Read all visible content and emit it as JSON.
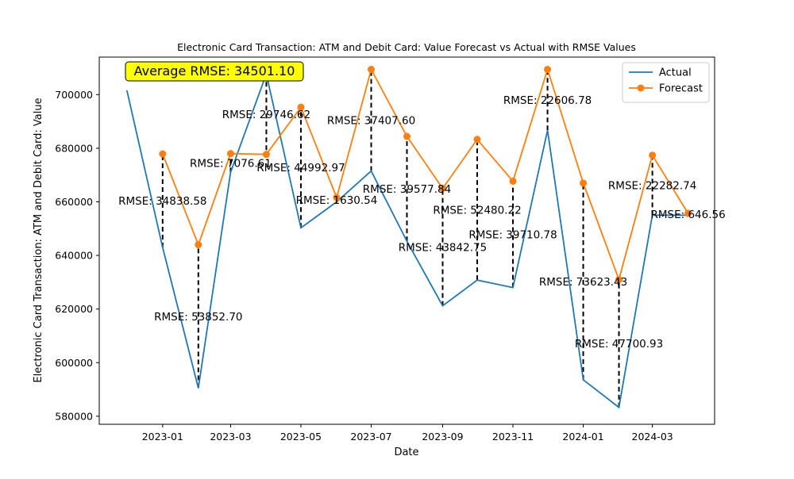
{
  "chart_data": {
    "type": "line",
    "title": "Electronic Card Transaction: ATM and Debit Card: Value Forecast vs Actual with RMSE Values",
    "xlabel": "Date",
    "ylabel": "Electronic Card Transaction: ATM and Debit Card: Value",
    "x_range": [
      "2022-11-07",
      "2024-04-24"
    ],
    "ylim": [
      577000,
      714000
    ],
    "grid": false,
    "legend_position": "top-right",
    "x_ticks": [
      {
        "date": "2023-01-01",
        "label": "2023-01"
      },
      {
        "date": "2023-03-01",
        "label": "2023-03"
      },
      {
        "date": "2023-05-01",
        "label": "2023-05"
      },
      {
        "date": "2023-07-01",
        "label": "2023-07"
      },
      {
        "date": "2023-09-01",
        "label": "2023-09"
      },
      {
        "date": "2023-11-01",
        "label": "2023-11"
      },
      {
        "date": "2024-01-01",
        "label": "2024-01"
      },
      {
        "date": "2024-03-01",
        "label": "2024-03"
      }
    ],
    "y_ticks": [
      {
        "value": 580000,
        "label": "580000"
      },
      {
        "value": 600000,
        "label": "600000"
      },
      {
        "value": 620000,
        "label": "620000"
      },
      {
        "value": 640000,
        "label": "640000"
      },
      {
        "value": 660000,
        "label": "660000"
      },
      {
        "value": 680000,
        "label": "680000"
      },
      {
        "value": 700000,
        "label": "700000"
      }
    ],
    "series": [
      {
        "name": "Actual",
        "color": "#1f77b4",
        "marker": "none",
        "points": [
          {
            "date": "2022-12-01",
            "value": 701600
          },
          {
            "date": "2023-01-01",
            "value": 643000
          },
          {
            "date": "2023-02-01",
            "value": 590500
          },
          {
            "date": "2023-03-01",
            "value": 671000
          },
          {
            "date": "2023-04-01",
            "value": 707700
          },
          {
            "date": "2023-05-01",
            "value": 650300
          },
          {
            "date": "2023-06-01",
            "value": 660000
          },
          {
            "date": "2023-07-01",
            "value": 671500
          },
          {
            "date": "2023-08-01",
            "value": 645300
          },
          {
            "date": "2023-09-01",
            "value": 621200
          },
          {
            "date": "2023-10-01",
            "value": 630800
          },
          {
            "date": "2023-11-01",
            "value": 628000
          },
          {
            "date": "2023-12-01",
            "value": 686700
          },
          {
            "date": "2024-01-01",
            "value": 593600
          },
          {
            "date": "2024-02-01",
            "value": 583300
          },
          {
            "date": "2024-03-01",
            "value": 655000
          },
          {
            "date": "2024-04-01",
            "value": 655000
          }
        ]
      },
      {
        "name": "Forecast",
        "color": "#ff7f0e",
        "marker": "circle",
        "points": [
          {
            "date": "2023-01-01",
            "value": 677900
          },
          {
            "date": "2023-02-01",
            "value": 644000
          },
          {
            "date": "2023-03-01",
            "value": 678000
          },
          {
            "date": "2023-04-01",
            "value": 677700
          },
          {
            "date": "2023-05-01",
            "value": 695300
          },
          {
            "date": "2023-06-01",
            "value": 661600
          },
          {
            "date": "2023-07-01",
            "value": 709400
          },
          {
            "date": "2023-08-01",
            "value": 684400
          },
          {
            "date": "2023-09-01",
            "value": 665000
          },
          {
            "date": "2023-10-01",
            "value": 683300
          },
          {
            "date": "2023-11-01",
            "value": 667700
          },
          {
            "date": "2023-12-01",
            "value": 709400
          },
          {
            "date": "2024-01-01",
            "value": 667000
          },
          {
            "date": "2024-02-01",
            "value": 631000
          },
          {
            "date": "2024-03-01",
            "value": 677400
          },
          {
            "date": "2024-04-01",
            "value": 655700
          }
        ]
      }
    ],
    "rmse_annotations": [
      {
        "date": "2023-01-01",
        "text": "RMSE: 34838.58"
      },
      {
        "date": "2023-02-01",
        "text": "RMSE: 53852.70"
      },
      {
        "date": "2023-03-01",
        "text": "RMSE: 7076.61"
      },
      {
        "date": "2023-04-01",
        "text": "RMSE: 29746.62"
      },
      {
        "date": "2023-05-01",
        "text": "RMSE: 44992.97"
      },
      {
        "date": "2023-06-01",
        "text": "RMSE: 1630.54"
      },
      {
        "date": "2023-07-01",
        "text": "RMSE: 37407.60"
      },
      {
        "date": "2023-08-01",
        "text": "RMSE: 39577.84"
      },
      {
        "date": "2023-09-01",
        "text": "RMSE: 43842.75"
      },
      {
        "date": "2023-10-01",
        "text": "RMSE: 52480.22"
      },
      {
        "date": "2023-11-01",
        "text": "RMSE: 39710.78"
      },
      {
        "date": "2023-12-01",
        "text": "RMSE: 22606.78"
      },
      {
        "date": "2024-01-01",
        "text": "RMSE: 73623.43"
      },
      {
        "date": "2024-02-01",
        "text": "RMSE: 47700.93"
      },
      {
        "date": "2024-03-01",
        "text": "RMSE: 22282.74"
      },
      {
        "date": "2024-04-01",
        "text": "RMSE: 646.56"
      }
    ],
    "average_rmse_label": "Average RMSE: 34501.10",
    "average_rmse_box_color": "#ffff00"
  }
}
